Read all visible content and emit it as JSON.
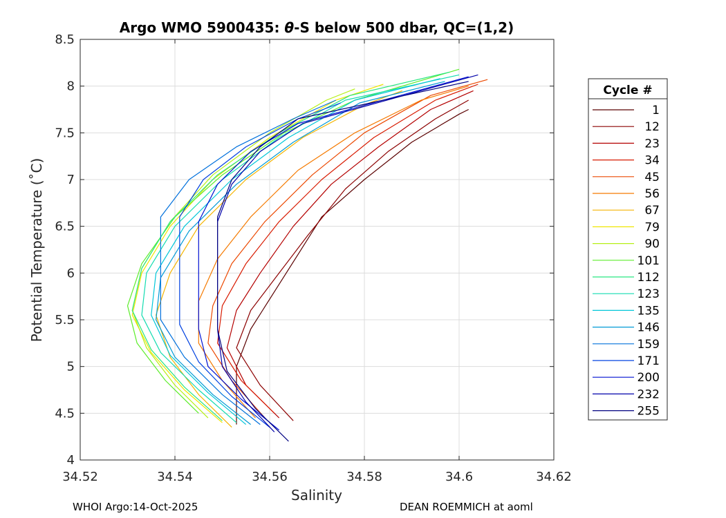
{
  "chart_data": {
    "type": "line",
    "title_prefix": "Argo WMO 5900435: ",
    "title_symbol": "θ",
    "title_suffix": "-S below 500 dbar,  QC=(1,2)",
    "xlabel": "Salinity",
    "ylabel": "Potential Temperature (˚C)",
    "xlim": [
      34.52,
      34.62
    ],
    "ylim": [
      4,
      8.5
    ],
    "xticks": [
      34.52,
      34.54,
      34.56,
      34.58,
      34.6,
      34.62
    ],
    "xtick_labels": [
      "34.52",
      "34.54",
      "34.56",
      "34.58",
      "34.6",
      "34.62"
    ],
    "yticks": [
      4,
      4.5,
      5,
      5.5,
      6,
      6.5,
      7,
      7.5,
      8,
      8.5
    ],
    "ytick_labels": [
      "4",
      "4.5",
      "5",
      "5.5",
      "6",
      "6.5",
      "7",
      "7.5",
      "8",
      "8.5"
    ],
    "grid": true,
    "legend_placement": "outside-right",
    "legend": {
      "title": "Cycle #",
      "entries": [
        {
          "label": "1",
          "color": "#5a0000"
        },
        {
          "label": "12",
          "color": "#8c0000"
        },
        {
          "label": "23",
          "color": "#b40000"
        },
        {
          "label": "34",
          "color": "#d81a00"
        },
        {
          "label": "45",
          "color": "#ec4800"
        },
        {
          "label": "56",
          "color": "#f57a00"
        },
        {
          "label": "67",
          "color": "#f5b400"
        },
        {
          "label": "79",
          "color": "#f0e600"
        },
        {
          "label": "90",
          "color": "#b6ef14"
        },
        {
          "label": "101",
          "color": "#5ced2a"
        },
        {
          "label": "112",
          "color": "#28e680"
        },
        {
          "label": "123",
          "color": "#12dcb0"
        },
        {
          "label": "135",
          "color": "#00c6d8"
        },
        {
          "label": "146",
          "color": "#009ad6"
        },
        {
          "label": "159",
          "color": "#0070dc"
        },
        {
          "label": "171",
          "color": "#0040e0"
        },
        {
          "label": "200",
          "color": "#0010d2"
        },
        {
          "label": "232",
          "color": "#0000aa"
        },
        {
          "label": "255",
          "color": "#000080"
        }
      ]
    },
    "series": [
      {
        "name": "1",
        "color": "#5a0000",
        "x": [
          34.553,
          34.553,
          34.556,
          34.561,
          34.566,
          34.571,
          34.58,
          34.59,
          34.6,
          34.602
        ],
        "y": [
          4.38,
          5.0,
          5.4,
          5.8,
          6.2,
          6.6,
          7.0,
          7.4,
          7.7,
          7.75
        ]
      },
      {
        "name": "12",
        "color": "#8c0000",
        "x": [
          34.565,
          34.558,
          34.553,
          34.556,
          34.562,
          34.568,
          34.576,
          34.585,
          34.595,
          34.602
        ],
        "y": [
          4.42,
          4.8,
          5.2,
          5.6,
          6.0,
          6.4,
          6.9,
          7.3,
          7.65,
          7.85
        ]
      },
      {
        "name": "23",
        "color": "#b40000",
        "x": [
          34.562,
          34.555,
          34.551,
          34.553,
          34.558,
          34.565,
          34.573,
          34.583,
          34.594,
          34.603
        ],
        "y": [
          4.45,
          4.8,
          5.2,
          5.6,
          6.0,
          6.5,
          6.95,
          7.35,
          7.75,
          7.95
        ]
      },
      {
        "name": "34",
        "color": "#d81a00",
        "x": [
          34.561,
          34.554,
          34.549,
          34.55,
          34.555,
          34.562,
          34.571,
          34.582,
          34.595,
          34.604
        ],
        "y": [
          4.5,
          4.85,
          5.25,
          5.65,
          6.1,
          6.55,
          7.0,
          7.45,
          7.85,
          8.02
        ]
      },
      {
        "name": "45",
        "color": "#ec4800",
        "x": [
          34.559,
          34.552,
          34.547,
          34.548,
          34.552,
          34.559,
          34.569,
          34.58,
          34.594,
          34.606
        ],
        "y": [
          4.45,
          4.85,
          5.25,
          5.65,
          6.1,
          6.55,
          7.05,
          7.5,
          7.9,
          8.07
        ]
      },
      {
        "name": "56",
        "color": "#f57a00",
        "x": [
          34.557,
          34.55,
          34.545,
          34.545,
          34.549,
          34.556,
          34.566,
          34.578,
          34.592,
          34.602
        ],
        "y": [
          4.45,
          4.85,
          5.25,
          5.7,
          6.15,
          6.6,
          7.1,
          7.5,
          7.85,
          8.0
        ]
      },
      {
        "name": "67",
        "color": "#f5b400",
        "x": [
          34.552,
          34.545,
          34.539,
          34.536,
          34.539,
          34.545,
          34.555,
          34.567,
          34.58,
          34.588
        ],
        "y": [
          4.35,
          4.7,
          5.1,
          5.55,
          6.0,
          6.5,
          7.0,
          7.45,
          7.8,
          7.95
        ]
      },
      {
        "name": "79",
        "color": "#f0e600",
        "x": [
          34.55,
          34.542,
          34.535,
          34.531,
          34.533,
          34.539,
          34.548,
          34.56,
          34.574,
          34.584
        ],
        "y": [
          4.4,
          4.75,
          5.15,
          5.55,
          6.0,
          6.5,
          7.0,
          7.45,
          7.85,
          8.02
        ]
      },
      {
        "name": "90",
        "color": "#b6ef14",
        "x": [
          34.547,
          34.54,
          34.534,
          34.531,
          34.533,
          34.539,
          34.548,
          34.56,
          34.572,
          34.578
        ],
        "y": [
          4.45,
          4.8,
          5.2,
          5.6,
          6.05,
          6.55,
          7.05,
          7.5,
          7.85,
          7.97
        ]
      },
      {
        "name": "101",
        "color": "#5ced2a",
        "x": [
          34.545,
          34.538,
          34.532,
          34.53,
          34.533,
          34.54,
          34.55,
          34.563,
          34.578,
          34.6
        ],
        "y": [
          4.5,
          4.85,
          5.25,
          5.65,
          6.1,
          6.6,
          7.05,
          7.5,
          7.85,
          8.18
        ]
      },
      {
        "name": "112",
        "color": "#28e680",
        "x": [
          34.55,
          34.542,
          34.535,
          34.531,
          34.533,
          34.539,
          34.549,
          34.562,
          34.577,
          34.598
        ],
        "y": [
          4.42,
          4.78,
          5.18,
          5.6,
          6.05,
          6.55,
          7.05,
          7.5,
          7.9,
          8.15
        ]
      },
      {
        "name": "123",
        "color": "#12dcb0",
        "x": [
          34.553,
          34.545,
          34.537,
          34.533,
          34.534,
          34.54,
          34.55,
          34.562,
          34.576,
          34.6
        ],
        "y": [
          4.4,
          4.75,
          5.15,
          5.55,
          6.0,
          6.5,
          7.0,
          7.45,
          7.85,
          8.12
        ]
      },
      {
        "name": "135",
        "color": "#00c6d8",
        "x": [
          34.555,
          34.547,
          34.539,
          34.535,
          34.536,
          34.542,
          34.552,
          34.564,
          34.578,
          34.596
        ],
        "y": [
          4.38,
          4.72,
          5.12,
          5.55,
          6.0,
          6.5,
          7.0,
          7.45,
          7.85,
          8.08
        ]
      },
      {
        "name": "146",
        "color": "#009ad6",
        "x": [
          34.556,
          34.548,
          34.54,
          34.536,
          34.537,
          34.543,
          34.553,
          34.565,
          34.579,
          34.597
        ],
        "y": [
          4.38,
          4.7,
          5.1,
          5.5,
          5.95,
          6.45,
          6.95,
          7.4,
          7.82,
          8.05
        ]
      },
      {
        "name": "159",
        "color": "#0070dc",
        "x": [
          34.558,
          34.55,
          34.542,
          34.537,
          34.537,
          34.537,
          34.543,
          34.553,
          34.565,
          34.574
        ],
        "y": [
          4.38,
          4.7,
          5.1,
          5.5,
          5.95,
          6.6,
          7.0,
          7.35,
          7.65,
          7.85
        ]
      },
      {
        "name": "171",
        "color": "#0040e0",
        "x": [
          34.56,
          34.552,
          34.545,
          34.541,
          34.541,
          34.541,
          34.546,
          34.555,
          34.566,
          34.575
        ],
        "y": [
          4.35,
          4.68,
          5.05,
          5.45,
          5.9,
          6.6,
          7.0,
          7.35,
          7.65,
          7.82
        ]
      },
      {
        "name": "200",
        "color": "#0010d2",
        "x": [
          34.562,
          34.554,
          34.547,
          34.545,
          34.545,
          34.545,
          34.549,
          34.556,
          34.566,
          34.602
        ],
        "y": [
          4.32,
          4.65,
          5.0,
          5.4,
          5.9,
          6.55,
          6.95,
          7.3,
          7.6,
          8.1
        ]
      },
      {
        "name": "232",
        "color": "#0000aa",
        "x": [
          34.561,
          34.555,
          34.55,
          34.549,
          34.549,
          34.549,
          34.552,
          34.558,
          34.567,
          34.604
        ],
        "y": [
          4.3,
          4.62,
          5.0,
          5.4,
          5.9,
          6.55,
          6.95,
          7.3,
          7.6,
          8.12
        ]
      },
      {
        "name": "255",
        "color": "#000080",
        "x": [
          34.564,
          34.557,
          34.551,
          34.549,
          34.549,
          34.549,
          34.552,
          34.558,
          34.566,
          34.602
        ],
        "y": [
          4.2,
          4.55,
          4.95,
          5.4,
          5.9,
          6.6,
          7.0,
          7.35,
          7.65,
          8.05
        ]
      }
    ]
  },
  "footer": {
    "left": "WHOI Argo:14-Oct-2025",
    "right": "DEAN ROEMMICH at aoml"
  }
}
